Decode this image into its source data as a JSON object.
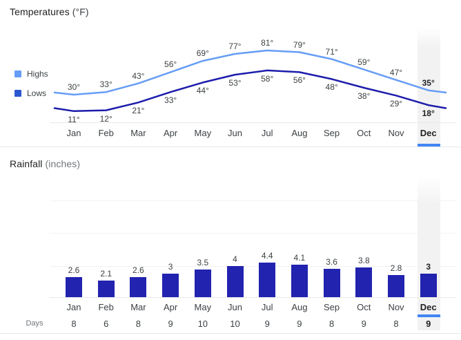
{
  "header": {
    "temps_title": "Temperatures",
    "temps_unit": "(°F)",
    "rain_title": "Rainfall",
    "rain_unit": "(inches)"
  },
  "legend": {
    "highs_label": "Highs",
    "lows_label": "Lows",
    "highs_color": "#669df6",
    "lows_color": "#2b57d0"
  },
  "days_label": "Days",
  "colors": {
    "highs_line": "#669df6",
    "lows_line": "#1c1cab",
    "bar": "#2223af",
    "selection_underline": "#4285f4",
    "selection_band": "#f2f2f2"
  },
  "chart_data": [
    {
      "type": "line",
      "title": "Temperatures (°F)",
      "categories": [
        "Jan",
        "Feb",
        "Mar",
        "Apr",
        "May",
        "Jun",
        "Jul",
        "Aug",
        "Sep",
        "Oct",
        "Nov",
        "Dec"
      ],
      "series": [
        {
          "name": "Highs",
          "color": "#669df6",
          "values": [
            30,
            33,
            43,
            56,
            69,
            77,
            81,
            79,
            71,
            59,
            47,
            35
          ]
        },
        {
          "name": "Lows",
          "color": "#1c1cab",
          "values": [
            11,
            12,
            21,
            33,
            44,
            53,
            58,
            56,
            48,
            38,
            29,
            18
          ]
        }
      ],
      "unit_suffix": "°",
      "highlighted_category": "Dec",
      "legend_position": "left",
      "grid": false
    },
    {
      "type": "bar",
      "title": "Rainfall (inches)",
      "categories": [
        "Jan",
        "Feb",
        "Mar",
        "Apr",
        "May",
        "Jun",
        "Jul",
        "Aug",
        "Sep",
        "Oct",
        "Nov",
        "Dec"
      ],
      "values": [
        2.6,
        2.1,
        2.6,
        3,
        3.5,
        4,
        4.4,
        4.1,
        3.6,
        3.8,
        2.8,
        3
      ],
      "bar_color": "#2223af",
      "highlighted_category": "Dec",
      "ylim": [
        0,
        12.4
      ],
      "gridlines": [
        4,
        8,
        12
      ],
      "legend_position": "none"
    },
    {
      "type": "table",
      "title": "Days",
      "categories": [
        "Jan",
        "Feb",
        "Mar",
        "Apr",
        "May",
        "Jun",
        "Jul",
        "Aug",
        "Sep",
        "Oct",
        "Nov",
        "Dec"
      ],
      "values": [
        8,
        6,
        8,
        9,
        10,
        10,
        9,
        9,
        8,
        9,
        8,
        9
      ],
      "highlighted_category": "Dec"
    }
  ]
}
